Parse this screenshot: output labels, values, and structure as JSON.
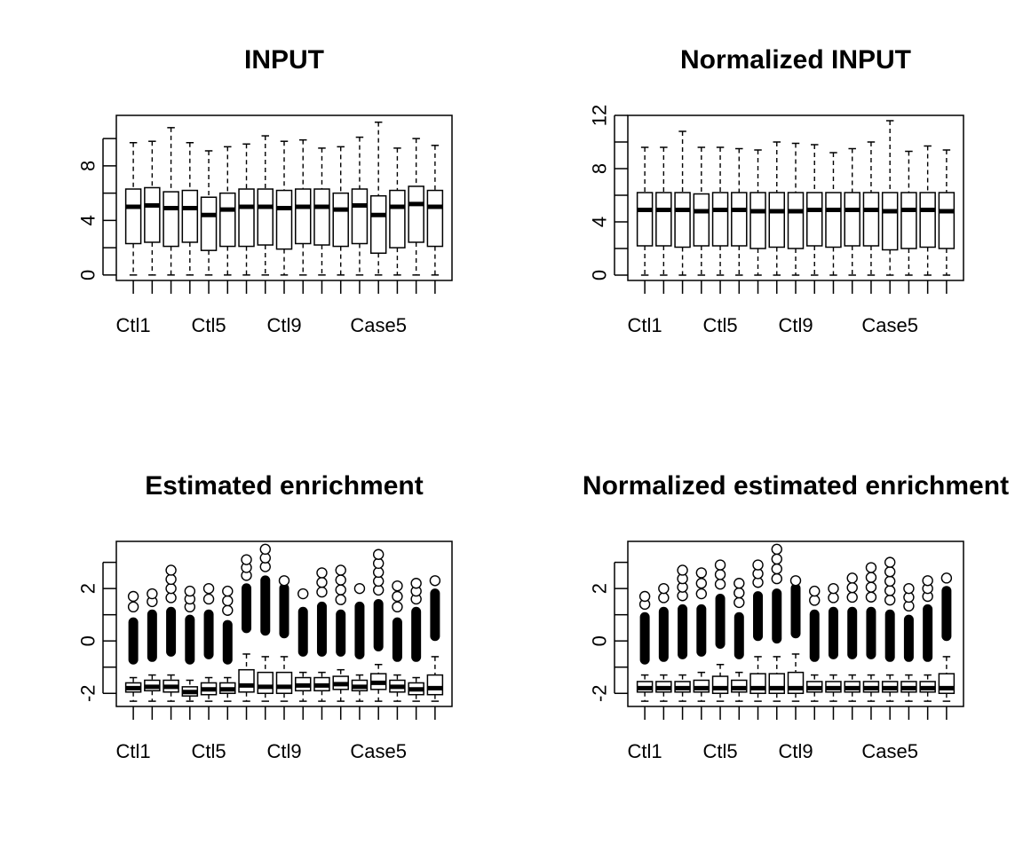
{
  "chart_data": [
    {
      "type": "box",
      "title": "INPUT",
      "x_tick_labels": [
        "Ctl1",
        "Ctl5",
        "Ctl9",
        "Case5"
      ],
      "x_tick_label_positions": [
        1,
        5,
        9,
        14
      ],
      "y_tick_labels": [
        "0",
        "4",
        "8"
      ],
      "y_ticks": [
        0,
        2,
        4,
        6,
        8,
        10
      ],
      "ylim": [
        -0.4,
        11.7
      ],
      "n_boxes": 17,
      "boxes": [
        {
          "min": 0,
          "q1": 2.3,
          "median": 5.0,
          "q3": 6.3,
          "max": 9.7
        },
        {
          "min": 0,
          "q1": 2.4,
          "median": 5.1,
          "q3": 6.4,
          "max": 9.8
        },
        {
          "min": 0,
          "q1": 2.1,
          "median": 4.9,
          "q3": 6.1,
          "max": 10.8
        },
        {
          "min": 0,
          "q1": 2.4,
          "median": 4.9,
          "q3": 6.2,
          "max": 9.7
        },
        {
          "min": 0,
          "q1": 1.8,
          "median": 4.4,
          "q3": 5.7,
          "max": 9.1
        },
        {
          "min": 0,
          "q1": 2.1,
          "median": 4.8,
          "q3": 6.0,
          "max": 9.4
        },
        {
          "min": 0,
          "q1": 2.1,
          "median": 5.0,
          "q3": 6.3,
          "max": 9.6
        },
        {
          "min": 0,
          "q1": 2.2,
          "median": 5.0,
          "q3": 6.3,
          "max": 10.2
        },
        {
          "min": 0,
          "q1": 1.9,
          "median": 4.9,
          "q3": 6.2,
          "max": 9.8
        },
        {
          "min": 0,
          "q1": 2.3,
          "median": 5.0,
          "q3": 6.3,
          "max": 9.9
        },
        {
          "min": 0,
          "q1": 2.2,
          "median": 5.0,
          "q3": 6.3,
          "max": 9.3
        },
        {
          "min": 0,
          "q1": 2.1,
          "median": 4.8,
          "q3": 6.0,
          "max": 9.4
        },
        {
          "min": 0,
          "q1": 2.3,
          "median": 5.1,
          "q3": 6.3,
          "max": 10.1
        },
        {
          "min": 0,
          "q1": 1.6,
          "median": 4.4,
          "q3": 5.8,
          "max": 11.2
        },
        {
          "min": 0,
          "q1": 2.0,
          "median": 5.0,
          "q3": 6.2,
          "max": 9.3
        },
        {
          "min": 0,
          "q1": 2.4,
          "median": 5.2,
          "q3": 6.5,
          "max": 10.0
        },
        {
          "min": 0,
          "q1": 2.1,
          "median": 5.0,
          "q3": 6.2,
          "max": 9.5
        }
      ]
    },
    {
      "type": "box",
      "title": "Normalized INPUT",
      "x_tick_labels": [
        "Ctl1",
        "Ctl5",
        "Ctl9",
        "Case5"
      ],
      "x_tick_label_positions": [
        1,
        5,
        9,
        14
      ],
      "y_tick_labels": [
        "0",
        "4",
        "8",
        "12"
      ],
      "y_ticks": [
        0,
        2,
        4,
        6,
        8,
        10,
        12
      ],
      "ylim": [
        -0.4,
        12.0
      ],
      "n_boxes": 17,
      "boxes": [
        {
          "min": 0,
          "q1": 2.2,
          "median": 4.9,
          "q3": 6.2,
          "max": 9.6
        },
        {
          "min": 0,
          "q1": 2.2,
          "median": 4.9,
          "q3": 6.2,
          "max": 9.6
        },
        {
          "min": 0,
          "q1": 2.1,
          "median": 4.9,
          "q3": 6.2,
          "max": 10.8
        },
        {
          "min": 0,
          "q1": 2.2,
          "median": 4.8,
          "q3": 6.1,
          "max": 9.6
        },
        {
          "min": 0,
          "q1": 2.2,
          "median": 4.9,
          "q3": 6.2,
          "max": 9.6
        },
        {
          "min": 0,
          "q1": 2.2,
          "median": 4.9,
          "q3": 6.2,
          "max": 9.5
        },
        {
          "min": 0,
          "q1": 2.0,
          "median": 4.8,
          "q3": 6.2,
          "max": 9.4
        },
        {
          "min": 0,
          "q1": 2.1,
          "median": 4.8,
          "q3": 6.2,
          "max": 10.0
        },
        {
          "min": 0,
          "q1": 2.0,
          "median": 4.8,
          "q3": 6.2,
          "max": 9.9
        },
        {
          "min": 0,
          "q1": 2.2,
          "median": 4.9,
          "q3": 6.2,
          "max": 9.8
        },
        {
          "min": 0,
          "q1": 2.1,
          "median": 4.9,
          "q3": 6.2,
          "max": 9.2
        },
        {
          "min": 0,
          "q1": 2.2,
          "median": 4.9,
          "q3": 6.2,
          "max": 9.5
        },
        {
          "min": 0,
          "q1": 2.2,
          "median": 4.9,
          "q3": 6.2,
          "max": 10.0
        },
        {
          "min": 0,
          "q1": 1.9,
          "median": 4.8,
          "q3": 6.2,
          "max": 11.6
        },
        {
          "min": 0,
          "q1": 2.0,
          "median": 4.9,
          "q3": 6.2,
          "max": 9.3
        },
        {
          "min": 0,
          "q1": 2.1,
          "median": 4.9,
          "q3": 6.2,
          "max": 9.7
        },
        {
          "min": 0,
          "q1": 2.0,
          "median": 4.8,
          "q3": 6.2,
          "max": 9.4
        }
      ]
    },
    {
      "type": "box",
      "title": "Estimated enrichment",
      "x_tick_labels": [
        "Ctl1",
        "Ctl5",
        "Ctl9",
        "Case5"
      ],
      "x_tick_label_positions": [
        1,
        5,
        9,
        14
      ],
      "y_tick_labels": [
        "-2",
        "0",
        "2"
      ],
      "y_ticks": [
        -2,
        -1,
        0,
        1,
        2,
        3
      ],
      "ylim": [
        -2.5,
        3.8
      ],
      "n_boxes": 17,
      "boxes": [
        {
          "min": -2.3,
          "q1": -1.95,
          "median": -1.8,
          "q3": -1.6,
          "max": -1.4,
          "outlier_low": -0.9,
          "outlier_high": 1.7,
          "dense_top": 0.9
        },
        {
          "min": -2.3,
          "q1": -1.9,
          "median": -1.75,
          "q3": -1.5,
          "max": -1.3,
          "outlier_low": -0.8,
          "outlier_high": 1.8,
          "dense_top": 1.2
        },
        {
          "min": -2.3,
          "q1": -1.95,
          "median": -1.75,
          "q3": -1.5,
          "max": -1.3,
          "outlier_low": -0.6,
          "outlier_high": 2.7,
          "dense_top": 1.3
        },
        {
          "min": -2.3,
          "q1": -2.1,
          "median": -1.95,
          "q3": -1.75,
          "max": -1.5,
          "outlier_low": -0.9,
          "outlier_high": 1.9,
          "dense_top": 1.0
        },
        {
          "min": -2.3,
          "q1": -2.05,
          "median": -1.85,
          "q3": -1.6,
          "max": -1.4,
          "outlier_low": -0.7,
          "outlier_high": 2.0,
          "dense_top": 1.2
        },
        {
          "min": -2.3,
          "q1": -2.0,
          "median": -1.85,
          "q3": -1.6,
          "max": -1.4,
          "outlier_low": -0.9,
          "outlier_high": 1.9,
          "dense_top": 0.8
        },
        {
          "min": -2.3,
          "q1": -1.95,
          "median": -1.7,
          "q3": -1.1,
          "max": -0.5,
          "outlier_low": 0.3,
          "outlier_high": 3.1,
          "dense_top": 2.2
        },
        {
          "min": -2.3,
          "q1": -2.0,
          "median": -1.75,
          "q3": -1.2,
          "max": -0.6,
          "outlier_low": 0.2,
          "outlier_high": 3.5,
          "dense_top": 2.5
        },
        {
          "min": -2.3,
          "q1": -2.0,
          "median": -1.75,
          "q3": -1.2,
          "max": -0.6,
          "outlier_low": 0.1,
          "outlier_high": 2.3,
          "dense_top": 2.2
        },
        {
          "min": -2.3,
          "q1": -1.9,
          "median": -1.7,
          "q3": -1.4,
          "max": -1.2,
          "outlier_low": -0.6,
          "outlier_high": 1.8,
          "dense_top": 1.3
        },
        {
          "min": -2.3,
          "q1": -1.9,
          "median": -1.7,
          "q3": -1.4,
          "max": -1.2,
          "outlier_low": -0.6,
          "outlier_high": 2.6,
          "dense_top": 1.5
        },
        {
          "min": -2.3,
          "q1": -1.85,
          "median": -1.65,
          "q3": -1.35,
          "max": -1.1,
          "outlier_low": -0.6,
          "outlier_high": 2.7,
          "dense_top": 1.2
        },
        {
          "min": -2.3,
          "q1": -1.9,
          "median": -1.75,
          "q3": -1.5,
          "max": -1.3,
          "outlier_low": -0.7,
          "outlier_high": 2.0,
          "dense_top": 1.5
        },
        {
          "min": -2.3,
          "q1": -1.85,
          "median": -1.6,
          "q3": -1.25,
          "max": -0.9,
          "outlier_low": -0.4,
          "outlier_high": 3.3,
          "dense_top": 1.6
        },
        {
          "min": -2.3,
          "q1": -1.95,
          "median": -1.75,
          "q3": -1.5,
          "max": -1.3,
          "outlier_low": -0.8,
          "outlier_high": 2.1,
          "dense_top": 0.9
        },
        {
          "min": -2.3,
          "q1": -2.05,
          "median": -1.85,
          "q3": -1.6,
          "max": -1.4,
          "outlier_low": -0.8,
          "outlier_high": 2.2,
          "dense_top": 1.3
        },
        {
          "min": -2.3,
          "q1": -2.05,
          "median": -1.8,
          "q3": -1.3,
          "max": -0.6,
          "outlier_low": 0.0,
          "outlier_high": 2.3,
          "dense_top": 2.0
        }
      ]
    },
    {
      "type": "box",
      "title": "Normalized estimated enrichment",
      "x_tick_labels": [
        "Ctl1",
        "Ctl5",
        "Ctl9",
        "Case5"
      ],
      "x_tick_label_positions": [
        1,
        5,
        9,
        14
      ],
      "y_tick_labels": [
        "-2",
        "0",
        "2"
      ],
      "y_ticks": [
        -2,
        -1,
        0,
        1,
        2,
        3
      ],
      "ylim": [
        -2.5,
        3.8
      ],
      "n_boxes": 17,
      "boxes": [
        {
          "min": -2.3,
          "q1": -1.95,
          "median": -1.8,
          "q3": -1.55,
          "max": -1.3,
          "outlier_low": -0.9,
          "outlier_high": 1.7,
          "dense_top": 1.1
        },
        {
          "min": -2.3,
          "q1": -1.95,
          "median": -1.8,
          "q3": -1.55,
          "max": -1.3,
          "outlier_low": -0.8,
          "outlier_high": 2.0,
          "dense_top": 1.3
        },
        {
          "min": -2.3,
          "q1": -1.95,
          "median": -1.8,
          "q3": -1.55,
          "max": -1.3,
          "outlier_low": -0.7,
          "outlier_high": 2.7,
          "dense_top": 1.4
        },
        {
          "min": -2.3,
          "q1": -1.95,
          "median": -1.8,
          "q3": -1.5,
          "max": -1.2,
          "outlier_low": -0.6,
          "outlier_high": 2.6,
          "dense_top": 1.4
        },
        {
          "min": -2.3,
          "q1": -2.0,
          "median": -1.8,
          "q3": -1.35,
          "max": -0.9,
          "outlier_low": -0.3,
          "outlier_high": 2.9,
          "dense_top": 1.8
        },
        {
          "min": -2.3,
          "q1": -1.95,
          "median": -1.8,
          "q3": -1.5,
          "max": -1.2,
          "outlier_low": -0.7,
          "outlier_high": 2.2,
          "dense_top": 1.1
        },
        {
          "min": -2.3,
          "q1": -2.0,
          "median": -1.8,
          "q3": -1.25,
          "max": -0.6,
          "outlier_low": 0.0,
          "outlier_high": 2.9,
          "dense_top": 1.9
        },
        {
          "min": -2.3,
          "q1": -2.0,
          "median": -1.8,
          "q3": -1.25,
          "max": -0.6,
          "outlier_low": -0.1,
          "outlier_high": 3.5,
          "dense_top": 2.0
        },
        {
          "min": -2.3,
          "q1": -2.0,
          "median": -1.8,
          "q3": -1.2,
          "max": -0.5,
          "outlier_low": 0.1,
          "outlier_high": 2.3,
          "dense_top": 2.2
        },
        {
          "min": -2.3,
          "q1": -1.95,
          "median": -1.8,
          "q3": -1.55,
          "max": -1.3,
          "outlier_low": -0.8,
          "outlier_high": 1.9,
          "dense_top": 1.2
        },
        {
          "min": -2.3,
          "q1": -1.95,
          "median": -1.8,
          "q3": -1.55,
          "max": -1.3,
          "outlier_low": -0.7,
          "outlier_high": 2.0,
          "dense_top": 1.3
        },
        {
          "min": -2.3,
          "q1": -1.95,
          "median": -1.8,
          "q3": -1.55,
          "max": -1.3,
          "outlier_low": -0.7,
          "outlier_high": 2.4,
          "dense_top": 1.3
        },
        {
          "min": -2.3,
          "q1": -1.95,
          "median": -1.8,
          "q3": -1.55,
          "max": -1.3,
          "outlier_low": -0.7,
          "outlier_high": 2.8,
          "dense_top": 1.3
        },
        {
          "min": -2.3,
          "q1": -1.95,
          "median": -1.8,
          "q3": -1.55,
          "max": -1.3,
          "outlier_low": -0.8,
          "outlier_high": 3.0,
          "dense_top": 1.2
        },
        {
          "min": -2.3,
          "q1": -1.95,
          "median": -1.8,
          "q3": -1.55,
          "max": -1.3,
          "outlier_low": -0.8,
          "outlier_high": 2.0,
          "dense_top": 1.0
        },
        {
          "min": -2.3,
          "q1": -1.95,
          "median": -1.8,
          "q3": -1.55,
          "max": -1.3,
          "outlier_low": -0.8,
          "outlier_high": 2.3,
          "dense_top": 1.4
        },
        {
          "min": -2.3,
          "q1": -2.0,
          "median": -1.8,
          "q3": -1.25,
          "max": -0.6,
          "outlier_low": 0.0,
          "outlier_high": 2.4,
          "dense_top": 2.1
        }
      ]
    }
  ]
}
